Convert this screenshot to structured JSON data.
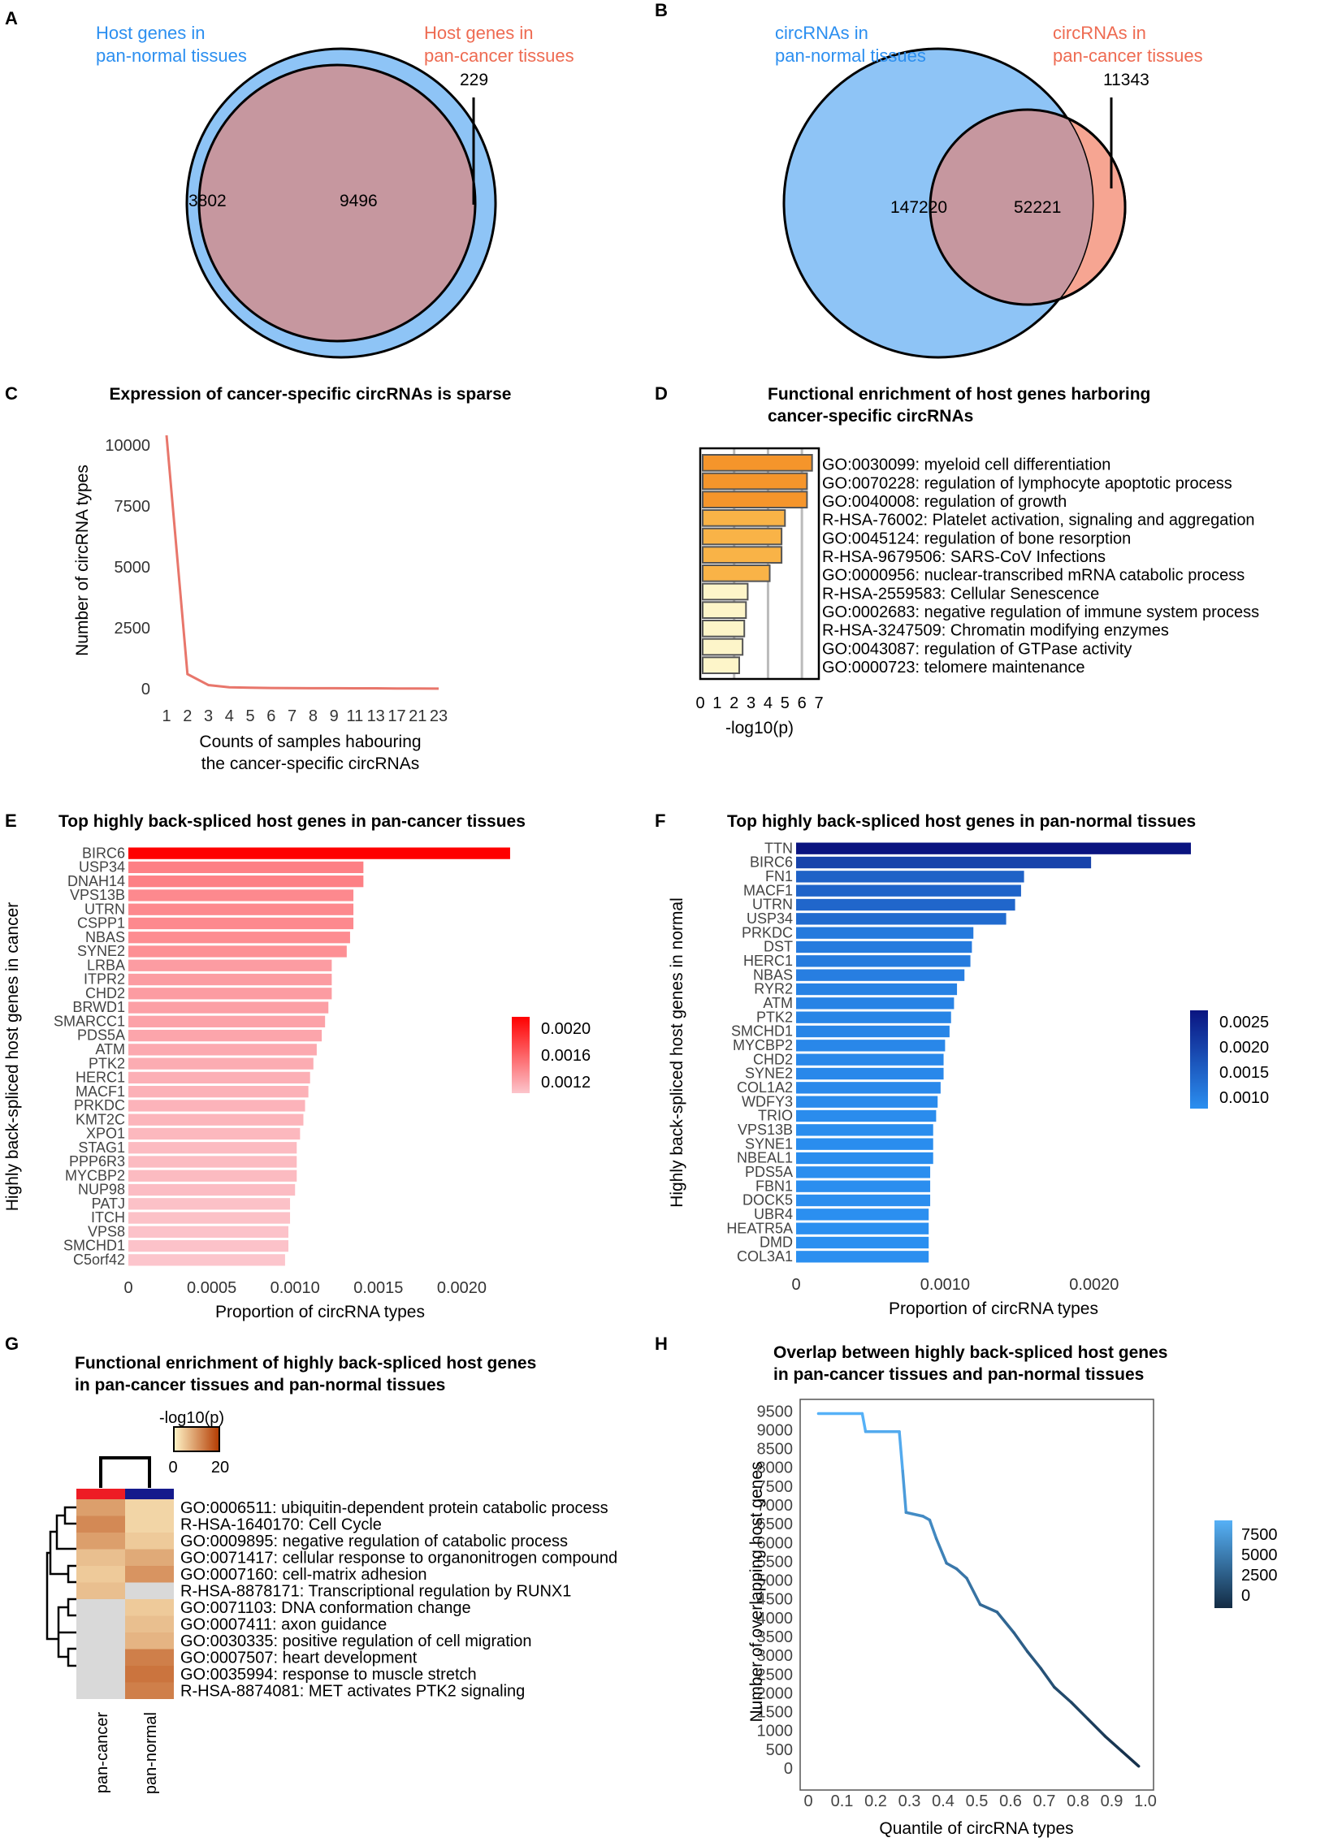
{
  "panels": {
    "A": {
      "label": "A",
      "left_title": [
        "Host genes in",
        "pan-normal tissues"
      ],
      "right_title": [
        "Host genes in",
        "pan-cancer tissues"
      ],
      "only_left": "3802",
      "overlap": "9496",
      "only_right": "229",
      "colors": {
        "left": "#8ec4f6",
        "overlap": "#c6979f",
        "right": "#f6a592",
        "left_text": "#2c8ff0",
        "right_text": "#ee6b52"
      }
    },
    "B": {
      "label": "B",
      "left_title": [
        "circRNAs in",
        "pan-normal tissues"
      ],
      "right_title": [
        "circRNAs in",
        "pan-cancer tissues"
      ],
      "only_left": "147220",
      "overlap": "52221",
      "only_right": "11343"
    },
    "C": {
      "label": "C"
    },
    "D": {
      "label": "D"
    },
    "E": {
      "label": "E"
    },
    "F": {
      "label": "F"
    },
    "G": {
      "label": "G"
    },
    "H": {
      "label": "H"
    }
  },
  "chart_data": [
    {
      "id": "C",
      "type": "line",
      "title": "Expression of cancer-specific circRNAs is sparse",
      "xlabel": [
        "Counts of samples habouring",
        "the cancer-specific circRNAs"
      ],
      "ylabel": "Number of circRNA types",
      "x_tick_labels": [
        "1",
        "2",
        "3",
        "4",
        "5",
        "6",
        "7",
        "8",
        "9",
        "11",
        "13",
        "17",
        "21",
        "23"
      ],
      "y_ticks": [
        0,
        2500,
        5000,
        7500,
        10000
      ],
      "ylim": [
        0,
        10600
      ],
      "values": [
        10400,
        600,
        150,
        60,
        40,
        30,
        25,
        20,
        20,
        15,
        15,
        10,
        10,
        5
      ],
      "color": "#e8766b"
    },
    {
      "id": "D",
      "type": "bar",
      "orientation": "horizontal",
      "title": [
        "Functional enrichment of host genes harboring",
        "cancer-specific circRNAs"
      ],
      "xlabel": "-log10(p)",
      "x_ticks": [
        0,
        1,
        2,
        3,
        4,
        5,
        6,
        7
      ],
      "xlim": [
        0,
        7
      ],
      "categories": [
        "GO:0030099: myeloid cell differentiation",
        "GO:0070228: regulation of lymphocyte apoptotic process",
        "GO:0040008: regulation of growth",
        "R-HSA-76002: Platelet activation, signaling and aggregation",
        "GO:0045124: regulation of bone resorption",
        "R-HSA-9679506: SARS-CoV Infections",
        "GO:0000956: nuclear-transcribed mRNA catabolic process",
        "R-HSA-2559583: Cellular Senescence",
        "GO:0002683: negative regulation of immune system process",
        "R-HSA-3247509: Chromatin modifying enzymes",
        "GO:0043087: regulation of GTPase activity",
        "GO:0000723: telomere maintenance"
      ],
      "values": [
        6.6,
        6.3,
        6.3,
        5.0,
        4.8,
        4.8,
        4.1,
        2.8,
        2.7,
        2.6,
        2.5,
        2.3
      ],
      "colors": [
        "#f5952b",
        "#f5952b",
        "#f5952b",
        "#f9b347",
        "#f9b347",
        "#f9b347",
        "#f9b347",
        "#fdf5c9",
        "#fdf5c9",
        "#fdf5c9",
        "#fdf5c9",
        "#fdf5c9"
      ]
    },
    {
      "id": "E",
      "type": "bar",
      "orientation": "horizontal",
      "title": "Top highly back-spliced host genes in pan-cancer tissues",
      "xlabel": "Proportion of circRNA types",
      "ylabel": "Highly back-spliced host genes in cancer",
      "x_ticks": [
        0,
        0.0005,
        0.001,
        0.0015,
        0.002
      ],
      "x_tick_labels": [
        "0",
        "0.0005",
        "0.0010",
        "0.0015",
        "0.0020"
      ],
      "xlim": [
        0,
        0.0023
      ],
      "categories": [
        "BIRC6",
        "USP34",
        "DNAH14",
        "VPS13B",
        "UTRN",
        "CSPP1",
        "NBAS",
        "SYNE2",
        "LRBA",
        "ITPR2",
        "CHD2",
        "BRWD1",
        "SMARCC1",
        "PDS5A",
        "ATM",
        "PTK2",
        "HERC1",
        "MACF1",
        "PRKDC",
        "KMT2C",
        "XPO1",
        "STAG1",
        "PPP6R3",
        "MYCBP2",
        "NUP98",
        "PATJ",
        "ITCH",
        "VPS8",
        "SMCHD1",
        "C5orf42"
      ],
      "values": [
        0.00229,
        0.00141,
        0.00141,
        0.00135,
        0.00135,
        0.00135,
        0.00133,
        0.00131,
        0.00122,
        0.00122,
        0.00122,
        0.0012,
        0.00118,
        0.00116,
        0.00113,
        0.00111,
        0.00109,
        0.00108,
        0.00106,
        0.00105,
        0.00103,
        0.00101,
        0.00101,
        0.00101,
        0.001,
        0.00097,
        0.00097,
        0.00096,
        0.00096,
        0.00094
      ],
      "legend": {
        "ticks": [
          "0.0020",
          "0.0016",
          "0.0012"
        ],
        "low_color": "#fcc5cc",
        "high_color": "#fe0000"
      }
    },
    {
      "id": "F",
      "type": "bar",
      "orientation": "horizontal",
      "title": "Top highly back-spliced host genes in pan-normal tissues",
      "xlabel": "Proportion of circRNA types",
      "ylabel": "Highly back-spliced host genes in normal",
      "x_ticks": [
        0,
        0.001,
        0.002
      ],
      "x_tick_labels": [
        "0",
        "0.0010",
        "0.0020"
      ],
      "xlim": [
        0,
        0.00265
      ],
      "categories": [
        "TTN",
        "BIRC6",
        "FN1",
        "MACF1",
        "UTRN",
        "USP34",
        "PRKDC",
        "DST",
        "HERC1",
        "NBAS",
        "RYR2",
        "ATM",
        "PTK2",
        "SMCHD1",
        "MYCBP2",
        "CHD2",
        "SYNE2",
        "COL1A2",
        "WDFY3",
        "TRIO",
        "VPS13B",
        "SYNE1",
        "NBEAL1",
        "PDS5A",
        "FBN1",
        "DOCK5",
        "UBR4",
        "HEATR5A",
        "DMD",
        "COL3A1"
      ],
      "values": [
        0.00265,
        0.00198,
        0.00153,
        0.00151,
        0.00147,
        0.00141,
        0.00119,
        0.00118,
        0.00117,
        0.00113,
        0.00108,
        0.00106,
        0.00104,
        0.00103,
        0.001,
        0.00099,
        0.00099,
        0.00097,
        0.00095,
        0.00094,
        0.00092,
        0.00092,
        0.00092,
        0.0009,
        0.0009,
        0.0009,
        0.00089,
        0.00089,
        0.00089,
        0.00089
      ],
      "legend": {
        "ticks": [
          "0.0025",
          "0.0020",
          "0.0015",
          "0.0010"
        ],
        "low_color": "#2b8ff0",
        "high_color": "#0a1480"
      }
    },
    {
      "id": "G",
      "type": "heatmap",
      "title": [
        "Functional enrichment of highly back-spliced host genes",
        "in pan-cancer tissues and pan-normal tissues"
      ],
      "legend_title": "-log10(p)",
      "legend_ticks": [
        "0",
        "20"
      ],
      "columns": [
        "pan-cancer",
        "pan-normal"
      ],
      "column_colors": [
        "#ee1c24",
        "#151a8c"
      ],
      "rows": [
        "GO:0006511: ubiquitin-dependent protein catabolic process",
        "R-HSA-1640170: Cell Cycle",
        "GO:0009895: negative regulation of catabolic process",
        "GO:0071417: cellular response to organonitrogen compound",
        "GO:0007160: cell-matrix adhesion",
        "R-HSA-8878171: Transcriptional regulation by RUNX1",
        "GO:0071103: DNA conformation change",
        "GO:0007411: axon guidance",
        "GO:0030335: positive regulation of cell migration",
        "GO:0007507: heart development",
        "GO:0035994: response to muscle stretch",
        "R-HSA-8874081: MET activates PTK2 signaling"
      ],
      "values": [
        [
          8,
          3
        ],
        [
          10,
          3
        ],
        [
          8,
          4
        ],
        [
          5,
          7
        ],
        [
          4,
          9
        ],
        [
          5,
          null
        ],
        [
          null,
          4
        ],
        [
          null,
          5
        ],
        [
          null,
          6
        ],
        [
          null,
          11
        ],
        [
          null,
          12
        ],
        [
          null,
          11
        ]
      ],
      "vmax": 20
    },
    {
      "id": "H",
      "type": "line",
      "title": [
        "Overlap between highly back-spliced host genes",
        "in pan-cancer tissues and pan-normal tissues"
      ],
      "xlabel": "Quantile of circRNA types",
      "ylabel": "Number of overlapping host genes",
      "x_ticks": [
        0,
        0.1,
        0.2,
        0.3,
        0.4,
        0.5,
        0.6,
        0.7,
        0.8,
        0.9,
        1.0
      ],
      "x_tick_labels": [
        "0",
        "0.1",
        "0.2",
        "0.3",
        "0.4",
        "0.5",
        "0.6",
        "0.7",
        "0.8",
        "0.9",
        "1.0"
      ],
      "y_ticks": [
        0,
        500,
        1000,
        1500,
        2000,
        2500,
        3000,
        3500,
        4000,
        4500,
        5000,
        5500,
        6000,
        6500,
        7000,
        7500,
        8000,
        8500,
        9000,
        9500
      ],
      "xlim": [
        0,
        1.0
      ],
      "ylim": [
        0,
        9700
      ],
      "x": [
        0.03,
        0.16,
        0.17,
        0.27,
        0.28,
        0.29,
        0.34,
        0.36,
        0.38,
        0.41,
        0.44,
        0.47,
        0.51,
        0.56,
        0.61,
        0.65,
        0.69,
        0.73,
        0.78,
        0.83,
        0.88,
        0.93,
        0.98
      ],
      "y": [
        9430,
        9430,
        8950,
        8950,
        7900,
        6800,
        6700,
        6600,
        6100,
        5450,
        5300,
        5050,
        4350,
        4150,
        3600,
        3100,
        2650,
        2150,
        1750,
        1300,
        850,
        450,
        50
      ],
      "legend": {
        "ticks": [
          "7500",
          "5000",
          "2500",
          "0"
        ],
        "low_color": "#132b43",
        "high_color": "#56b1f7"
      }
    }
  ]
}
